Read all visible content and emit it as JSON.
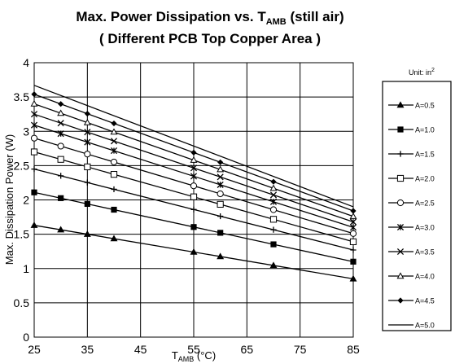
{
  "chart_data": {
    "type": "line",
    "title": {
      "line1_pre": "Max. Power Dissipation  vs. T",
      "line1_sub": "AMB",
      "line1_post": "  (still air)",
      "line2": "( Different PCB Top Copper Area )"
    },
    "xlabel": {
      "main": "T",
      "sub": "AMB",
      "post": "  (°C)"
    },
    "ylabel": "Max. Dissipation Power (W)",
    "xlim": [
      25,
      85
    ],
    "ylim": [
      0,
      4
    ],
    "xticks": [
      25,
      35,
      45,
      55,
      65,
      75,
      85
    ],
    "yticks": [
      0,
      0.5,
      1,
      1.5,
      2,
      2.5,
      3,
      3.5,
      4
    ],
    "ytick_labels": [
      "0",
      "0.5",
      "1",
      "1.5",
      "2",
      "2.5",
      "3",
      "3.5",
      "4"
    ],
    "grid": true,
    "legend_position": "right",
    "legend_unit": {
      "main": "Unit: in",
      "sup": "2"
    },
    "marker_x": [
      25,
      30,
      35,
      40,
      55,
      60,
      70,
      85
    ],
    "series": [
      {
        "name": "A=0.5",
        "marker": "triangle-filled",
        "start": 1.63,
        "end": 0.85
      },
      {
        "name": "A=1.0",
        "marker": "square-filled",
        "start": 2.11,
        "end": 1.1
      },
      {
        "name": "A=1.5",
        "marker": "plus",
        "start": 2.45,
        "end": 1.27
      },
      {
        "name": "A=2.0",
        "marker": "square-open",
        "start": 2.7,
        "end": 1.39
      },
      {
        "name": "A=2.5",
        "marker": "circle-open",
        "start": 2.9,
        "end": 1.51
      },
      {
        "name": "A=3.0",
        "marker": "star",
        "start": 3.09,
        "end": 1.6
      },
      {
        "name": "A=3.5",
        "marker": "x",
        "start": 3.25,
        "end": 1.68
      },
      {
        "name": "A=4.0",
        "marker": "triangle-open",
        "start": 3.4,
        "end": 1.76
      },
      {
        "name": "A=4.5",
        "marker": "diamond-filled",
        "start": 3.54,
        "end": 1.84
      },
      {
        "name": "A=5.0",
        "marker": "none",
        "start": 3.67,
        "end": 1.9
      }
    ]
  }
}
